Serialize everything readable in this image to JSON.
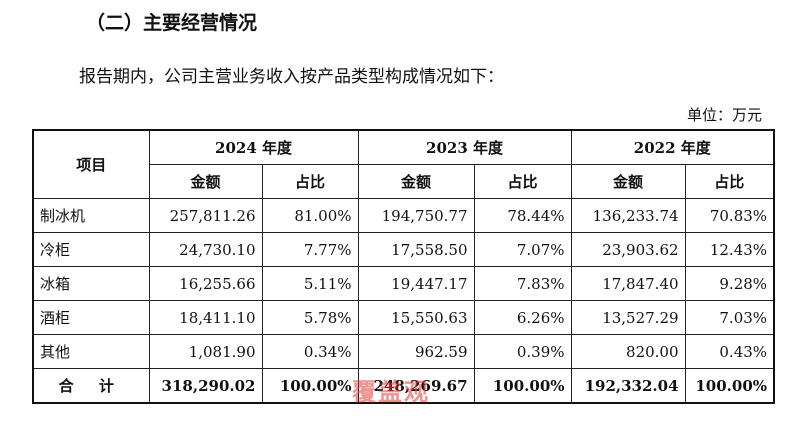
{
  "section_heading": "（二）主要经营情况",
  "intro_text": "报告期内，公司主营业务收入按产品类型构成情况如下：",
  "unit_label": "单位：万元",
  "table": {
    "item_header": "项目",
    "years": [
      "2024 年度",
      "2023 年度",
      "2022 年度"
    ],
    "sub_headers": [
      "金额",
      "占比"
    ],
    "rows": [
      {
        "label": "制冰机",
        "values": [
          "257,811.26",
          "81.00%",
          "194,750.77",
          "78.44%",
          "136,233.74",
          "70.83%"
        ]
      },
      {
        "label": "冷柜",
        "values": [
          "24,730.10",
          "7.77%",
          "17,558.50",
          "7.07%",
          "23,903.62",
          "12.43%"
        ]
      },
      {
        "label": "冰箱",
        "values": [
          "16,255.66",
          "5.11%",
          "19,447.17",
          "7.83%",
          "17,847.40",
          "9.28%"
        ]
      },
      {
        "label": "酒柜",
        "values": [
          "18,411.10",
          "5.78%",
          "15,550.63",
          "6.26%",
          "13,527.29",
          "7.03%"
        ]
      },
      {
        "label": "其他",
        "values": [
          "1,081.90",
          "0.34%",
          "962.59",
          "0.39%",
          "820.00",
          "0.43%"
        ]
      }
    ],
    "total": {
      "label": "合 计",
      "values": [
        "318,290.02",
        "100.00%",
        "248,269.67",
        "100.00%",
        "192,332.04",
        "100.00%"
      ]
    }
  },
  "watermark_text": "覆盖观",
  "colors": {
    "watermark": "#e23a3a",
    "border": "#111111"
  }
}
